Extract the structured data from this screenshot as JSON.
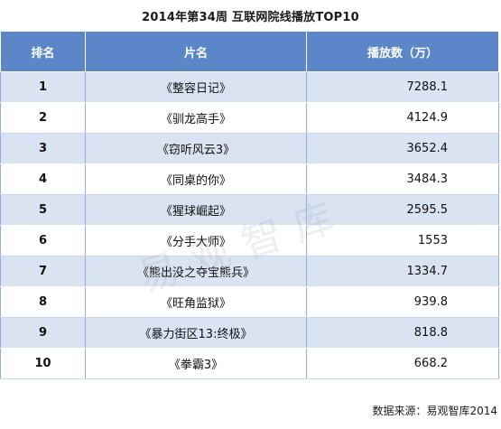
{
  "title": "2014年第34周 互联网院线播放TOP10",
  "headers": {
    "rank": "排名",
    "name": "片名",
    "views": "播放数（万）"
  },
  "rows": [
    {
      "rank": "1",
      "name": "《整容日记》",
      "views": "7288.1"
    },
    {
      "rank": "2",
      "name": "《驯龙高手》",
      "views": "4124.9"
    },
    {
      "rank": "3",
      "name": "《窃听风云3》",
      "views": "3652.4"
    },
    {
      "rank": "4",
      "name": "《同桌的你》",
      "views": "3484.3"
    },
    {
      "rank": "5",
      "name": "《猩球崛起》",
      "views": "2595.5"
    },
    {
      "rank": "6",
      "name": "《分手大师》",
      "views": "1553"
    },
    {
      "rank": "7",
      "name": "《熊出没之夺宝熊兵》",
      "views": "1334.7"
    },
    {
      "rank": "8",
      "name": "《旺角监狱》",
      "views": "939.8"
    },
    {
      "rank": "9",
      "name": "《暴力街区13:终极》",
      "views": "818.8"
    },
    {
      "rank": "10",
      "name": "《拳霸3》",
      "views": "668.2"
    }
  ],
  "watermark": "易观智库",
  "source": "数据来源：易观智库2014"
}
